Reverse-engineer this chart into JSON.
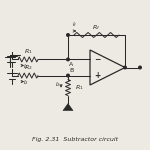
{
  "title": "Fig. 2.31  Subtractor circuit",
  "bg_color": "#ede9e3",
  "line_color": "#2a2a2a",
  "text_color": "#2a2a2a",
  "figsize": [
    1.5,
    1.5
  ],
  "dpi": 100
}
